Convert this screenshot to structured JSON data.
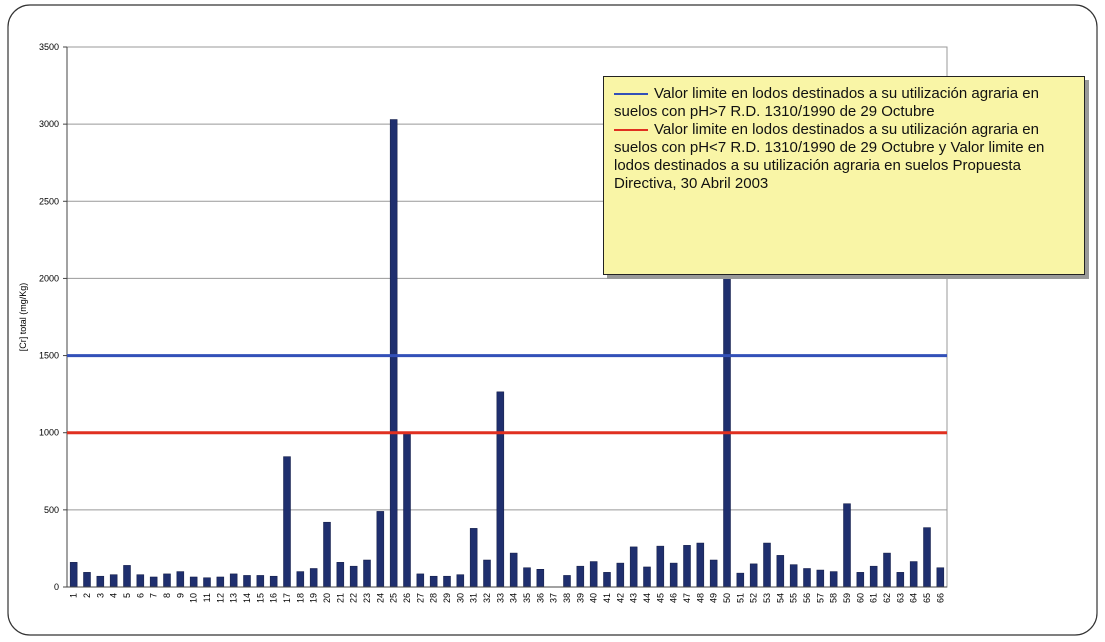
{
  "chart_data": {
    "type": "bar",
    "ylabel": "[Cr] total (mg/Kg)",
    "categories": [
      "1",
      "2",
      "3",
      "4",
      "5",
      "6",
      "7",
      "8",
      "9",
      "10",
      "11",
      "12",
      "13",
      "14",
      "15",
      "16",
      "17",
      "18",
      "19",
      "20",
      "21",
      "22",
      "23",
      "24",
      "25",
      "26",
      "27",
      "28",
      "29",
      "30",
      "31",
      "32",
      "33",
      "34",
      "35",
      "36",
      "37",
      "38",
      "39",
      "40",
      "41",
      "42",
      "43",
      "44",
      "45",
      "46",
      "47",
      "48",
      "49",
      "50",
      "51",
      "52",
      "53",
      "54",
      "55",
      "56",
      "57",
      "58",
      "59",
      "60",
      "61",
      "62",
      "63",
      "64",
      "65",
      "66"
    ],
    "values": [
      160,
      95,
      70,
      80,
      140,
      80,
      65,
      85,
      100,
      65,
      60,
      65,
      85,
      75,
      75,
      70,
      845,
      100,
      120,
      420,
      160,
      135,
      175,
      490,
      3030,
      1000,
      85,
      70,
      70,
      80,
      380,
      175,
      1265,
      220,
      125,
      115,
      0,
      75,
      135,
      165,
      95,
      155,
      260,
      130,
      265,
      155,
      270,
      285,
      175,
      2400,
      90,
      150,
      285,
      205,
      145,
      120,
      110,
      100,
      540,
      95,
      135,
      220,
      95,
      165,
      385,
      125
    ],
    "color": "#1f2f6e",
    "ylim": [
      0,
      3500
    ],
    "yticks": [
      0,
      500,
      1000,
      1500,
      2000,
      2500,
      3000,
      3500
    ],
    "grid": true,
    "reference_lines": [
      {
        "value": 1500,
        "color": "#3350b8",
        "label": "Valor limite en lodos destinados a su utilización agraria en suelos con pH>7   R.D. 1310/1990 de 29 Octubre"
      },
      {
        "value": 1000,
        "color": "#e03020",
        "label": "Valor limite en lodos destinados a su utilización agraria en suelos con pH<7   R.D. 1310/1990 de 29 Octubre  y  Valor limite en lodos destinados a su utilización agraria en suelos Propuesta Directiva, 30 Abril 2003"
      }
    ]
  }
}
